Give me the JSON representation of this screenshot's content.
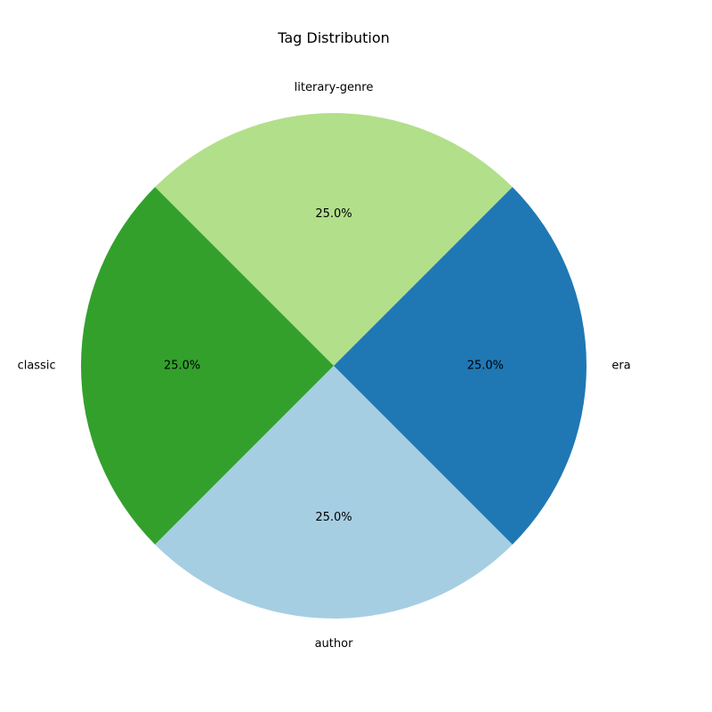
{
  "chart_data": {
    "type": "pie",
    "title": "Tag Distribution",
    "slices": [
      {
        "label": "literary-genre",
        "value": 25.0,
        "percent_label": "25.0%",
        "color": "#b2df8a"
      },
      {
        "label": "classic",
        "value": 25.0,
        "percent_label": "25.0%",
        "color": "#33a02c"
      },
      {
        "label": "author",
        "value": 25.0,
        "percent_label": "25.0%",
        "color": "#a6cee3"
      },
      {
        "label": "era",
        "value": 25.0,
        "percent_label": "25.0%",
        "color": "#1f78b4"
      }
    ],
    "start_angle_deg": 45,
    "direction": "counterclockwise",
    "legend": "none"
  }
}
